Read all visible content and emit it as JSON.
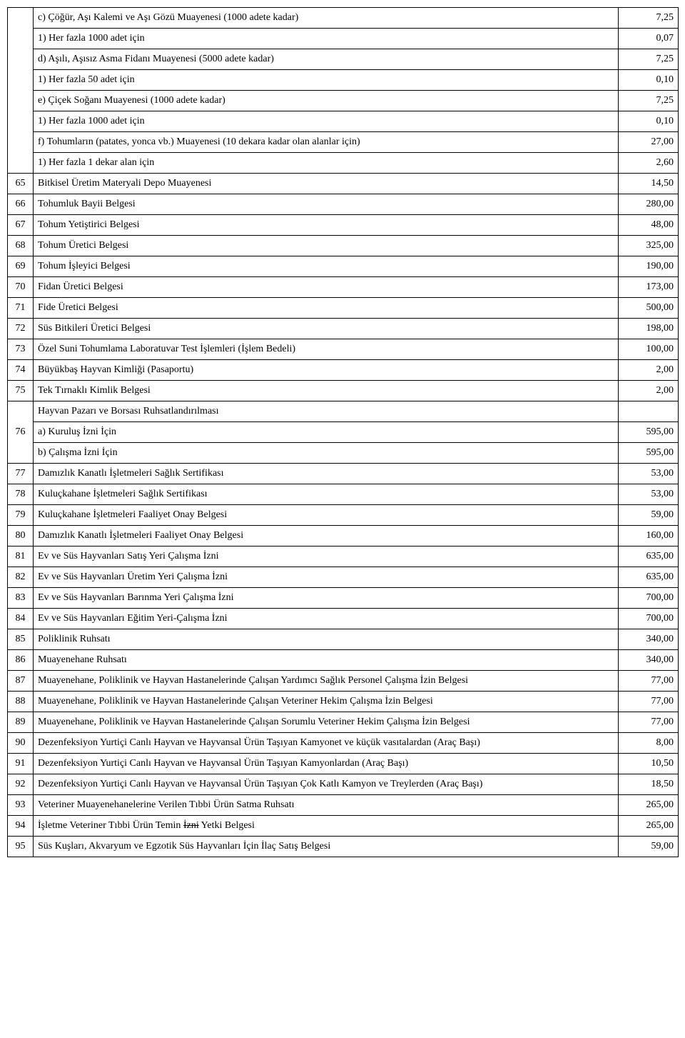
{
  "top_sub": [
    {
      "desc": "c) Çöğür, Aşı Kalemi ve Aşı Gözü Muayenesi (1000 adete kadar)",
      "val": "7,25"
    },
    {
      "desc": "1) Her fazla 1000 adet için",
      "val": "0,07"
    },
    {
      "desc": "d) Aşılı, Aşısız Asma Fidanı Muayenesi (5000 adete kadar)",
      "val": "7,25"
    },
    {
      "desc": "1) Her fazla 50 adet için",
      "val": "0,10"
    },
    {
      "desc": "e) Çiçek Soğanı Muayenesi (1000 adete kadar)",
      "val": "7,25"
    },
    {
      "desc": "1) Her fazla 1000 adet için",
      "val": "0,10"
    },
    {
      "desc": "f) Tohumların (patates, yonca vb.) Muayenesi (10 dekara kadar olan alanlar için)",
      "val": "27,00"
    },
    {
      "desc": "1) Her fazla 1 dekar alan için",
      "val": "2,60"
    }
  ],
  "rows": [
    {
      "n": "65",
      "desc": "Bitkisel Üretim Materyali Depo Muayenesi",
      "val": "14,50"
    },
    {
      "n": "66",
      "desc": "Tohumluk Bayii Belgesi",
      "val": "280,00"
    },
    {
      "n": "67",
      "desc": "Tohum Yetiştirici Belgesi",
      "val": "48,00"
    },
    {
      "n": "68",
      "desc": "Tohum Üretici Belgesi",
      "val": "325,00"
    },
    {
      "n": "69",
      "desc": "Tohum İşleyici Belgesi",
      "val": "190,00"
    },
    {
      "n": "70",
      "desc": "Fidan Üretici Belgesi",
      "val": "173,00"
    },
    {
      "n": "71",
      "desc": "Fide Üretici Belgesi",
      "val": "500,00"
    },
    {
      "n": "72",
      "desc": "Süs Bitkileri Üretici Belgesi",
      "val": "198,00"
    },
    {
      "n": "73",
      "desc": "Özel Suni Tohumlama Laboratuvar Test İşlemleri (İşlem Bedeli)",
      "val": "100,00"
    },
    {
      "n": "74",
      "desc": "Büyükbaş Hayvan Kimliği (Pasaportu)",
      "val": "2,00"
    },
    {
      "n": "75",
      "desc": "Tek Tırnaklı Kimlik Belgesi",
      "val": "2,00"
    }
  ],
  "row76": {
    "n": "76",
    "desc": "Hayvan Pazarı ve Borsası Ruhsatlandırılması",
    "sub": [
      {
        "desc": "a) Kuruluş İzni İçin",
        "val": "595,00"
      },
      {
        "desc": "b) Çalışma İzni İçin",
        "val": "595,00"
      }
    ]
  },
  "rows2": [
    {
      "n": "77",
      "desc": "Damızlık Kanatlı İşletmeleri Sağlık Sertifikası",
      "val": "53,00"
    },
    {
      "n": "78",
      "desc": "Kuluçkahane İşletmeleri Sağlık Sertifikası",
      "val": "53,00"
    },
    {
      "n": "79",
      "desc": "Kuluçkahane İşletmeleri Faaliyet Onay Belgesi",
      "val": "59,00"
    },
    {
      "n": "80",
      "desc": "Damızlık Kanatlı İşletmeleri Faaliyet Onay Belgesi",
      "val": "160,00"
    },
    {
      "n": "81",
      "desc": "Ev ve Süs Hayvanları Satış Yeri Çalışma İzni",
      "val": "635,00"
    },
    {
      "n": "82",
      "desc": "Ev ve Süs Hayvanları Üretim Yeri Çalışma İzni",
      "val": "635,00"
    },
    {
      "n": "83",
      "desc": "Ev ve Süs Hayvanları Barınma Yeri Çalışma İzni",
      "val": "700,00"
    },
    {
      "n": "84",
      "desc": "Ev ve Süs Hayvanları Eğitim Yeri-Çalışma İzni",
      "val": "700,00"
    },
    {
      "n": "85",
      "desc": "Poliklinik Ruhsatı",
      "val": "340,00"
    },
    {
      "n": "86",
      "desc": "Muayenehane Ruhsatı",
      "val": "340,00"
    },
    {
      "n": "87",
      "desc": "Muayenehane, Poliklinik ve Hayvan Hastanelerinde Çalışan Yardımcı Sağlık Personel Çalışma İzin Belgesi",
      "val": "77,00"
    },
    {
      "n": "88",
      "desc": "Muayenehane, Poliklinik ve Hayvan Hastanelerinde Çalışan Veteriner Hekim Çalışma İzin Belgesi",
      "val": "77,00"
    },
    {
      "n": "89",
      "desc": "Muayenehane, Poliklinik ve Hayvan Hastanelerinde Çalışan Sorumlu Veteriner Hekim Çalışma İzin Belgesi",
      "val": "77,00"
    },
    {
      "n": "90",
      "desc": "Dezenfeksiyon Yurtiçi Canlı Hayvan ve Hayvansal Ürün Taşıyan Kamyonet ve küçük vasıtalardan (Araç Başı)",
      "val": "8,00"
    },
    {
      "n": "91",
      "desc": "Dezenfeksiyon Yurtiçi Canlı Hayvan ve Hayvansal Ürün Taşıyan Kamyonlardan (Araç Başı)",
      "val": "10,50"
    },
    {
      "n": "92",
      "desc": "Dezenfeksiyon Yurtiçi Canlı Hayvan ve Hayvansal Ürün Taşıyan Çok Katlı Kamyon ve Treylerden (Araç Başı)",
      "val": "18,50"
    },
    {
      "n": "93",
      "desc": "Veteriner Muayenehanelerine  Verilen Tıbbi Ürün Satma  Ruhsatı",
      "val": "265,00"
    }
  ],
  "row94": {
    "n": "94",
    "pre": "İşletme Veteriner Tıbbi Ürün Temin ",
    "strike": "İzni",
    "post": " Yetki Belgesi",
    "val": "265,00"
  },
  "rows3": [
    {
      "n": "95",
      "desc": "Süs Kuşları, Akvaryum ve Egzotik Süs Hayvanları İçin İlaç Satış Belgesi",
      "val": "59,00"
    }
  ]
}
